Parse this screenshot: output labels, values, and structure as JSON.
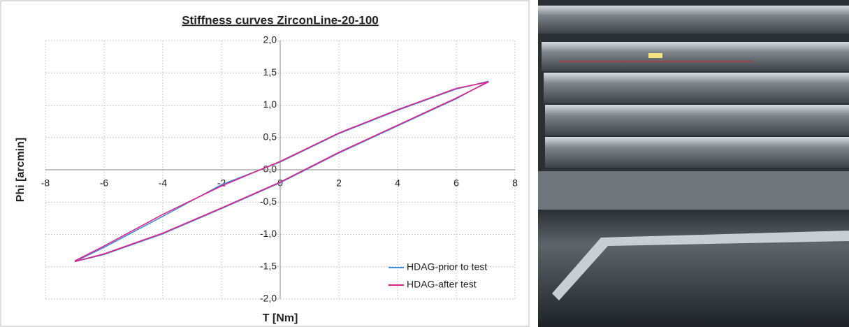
{
  "chart_data": {
    "type": "line",
    "title": "Stiffness curves ZirconLine-20-100",
    "x_label": "T [Nm]",
    "y_label": "Phi [arcmin]",
    "x": [
      -7,
      -6,
      -4,
      -2,
      0,
      2,
      4,
      6,
      7.1,
      6,
      4,
      2,
      0,
      -2,
      -4,
      -6,
      -7
    ],
    "series": [
      {
        "name": "HDAG-prior to test",
        "color": "#3c8fd8",
        "values": [
          -1.42,
          -1.31,
          -0.99,
          -0.6,
          -0.2,
          0.26,
          0.68,
          1.1,
          1.37,
          1.25,
          0.92,
          0.56,
          0.12,
          -0.23,
          -0.72,
          -1.2,
          -1.42
        ]
      },
      {
        "name": "HDAG-after test",
        "color": "#e0208c",
        "values": [
          -1.42,
          -1.3,
          -0.98,
          -0.59,
          -0.19,
          0.27,
          0.69,
          1.11,
          1.36,
          1.26,
          0.93,
          0.57,
          0.13,
          -0.25,
          -0.69,
          -1.18,
          -1.41
        ]
      }
    ],
    "xlim": [
      -8,
      8
    ],
    "xticks": [
      -8,
      -6,
      -4,
      -2,
      0,
      2,
      4,
      6,
      8
    ],
    "ylim": [
      -2,
      2
    ],
    "yticks": [
      {
        "value": -2,
        "label": "-2,0"
      },
      {
        "value": -1.5,
        "label": "-1,5"
      },
      {
        "value": -1,
        "label": "-1,0"
      },
      {
        "value": -0.5,
        "label": "-0,5"
      },
      {
        "value": 0,
        "label": "0,0"
      },
      {
        "value": 0.5,
        "label": "0,5"
      },
      {
        "value": 1,
        "label": "1,0"
      },
      {
        "value": 1.5,
        "label": "1,5"
      },
      {
        "value": 2,
        "label": "2,0"
      }
    ],
    "grid": true,
    "legend": "bottom-right"
  }
}
